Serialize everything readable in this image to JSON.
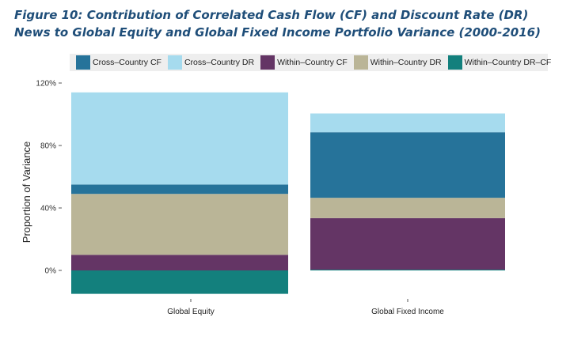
{
  "title": "Figure 10: Contribution of Correlated Cash Flow (CF) and Discount Rate (DR) News to Global Equity and Global Fixed Income Portfolio Variance (2000-2016)",
  "legend": [
    {
      "name": "Cross–Country CF",
      "color": "#26739a"
    },
    {
      "name": "Cross–Country DR",
      "color": "#a6dbee"
    },
    {
      "name": "Within–Country CF",
      "color": "#643565"
    },
    {
      "name": "Within–Country DR",
      "color": "#bab597"
    },
    {
      "name": "Within–Country DR–CF",
      "color": "#13807d"
    }
  ],
  "chart_data": {
    "type": "bar",
    "stacked": true,
    "title": "",
    "ylabel": "Proportion of Variance",
    "xlabel": "",
    "ylim": [
      -0.08,
      1.2
    ],
    "yticks": [
      0,
      0.4,
      0.8,
      1.2
    ],
    "ytick_labels": [
      "0%",
      "40%",
      "80%",
      "120%"
    ],
    "categories": [
      "Global Equity",
      "Global Fixed Income"
    ],
    "series": [
      {
        "name": "Cross–Country CF",
        "color": "#26739a",
        "values": [
          0.06,
          0.42
        ]
      },
      {
        "name": "Cross–Country DR",
        "color": "#a6dbee",
        "values": [
          0.59,
          0.12
        ]
      },
      {
        "name": "Within–Country CF",
        "color": "#643565",
        "values": [
          0.1,
          0.33
        ]
      },
      {
        "name": "Within–Country DR",
        "color": "#bab597",
        "values": [
          0.39,
          0.13
        ]
      },
      {
        "name": "Within–Country DR–CF",
        "color": "#13807d",
        "values": [
          -0.15,
          0.005
        ]
      }
    ],
    "legend_position": "top",
    "grid": false
  }
}
